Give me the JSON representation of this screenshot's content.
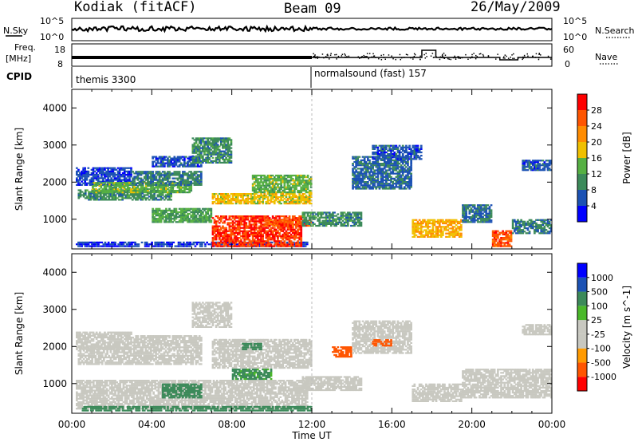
{
  "header": {
    "title": "Kodiak (fitACF)",
    "beam": "Beam 09",
    "date": "26/May/2009"
  },
  "strips": {
    "nsky_label": "N.Sky",
    "nsearch_label": "N.Search",
    "noise_tick_high": "10^5",
    "noise_tick_low": "10^0",
    "freq_label": "Freq.",
    "freq_unit": "[MHz]",
    "freq_tick_high": "18",
    "freq_tick_low": "8",
    "nave_label": "Nave",
    "nave_tick_high": "60",
    "nave_tick_low": "0",
    "cpid_label": "CPID",
    "cpid_1": "themis 3300",
    "cpid_2": "normalsound (fast) 157"
  },
  "colors": {
    "power_scale": [
      "#0000ff",
      "#1c52b4",
      "#3c8a5a",
      "#56b043",
      "#f0c000",
      "#ff8c00",
      "#ff5500",
      "#ff0000"
    ],
    "velocity_scale": [
      "#ff0000",
      "#ff5500",
      "#ff9a00",
      "#c8c8c0",
      "#c8c8c0",
      "#4ab82a",
      "#3c8a5a",
      "#1c52b4",
      "#0000ff"
    ],
    "grey_trace": "#c8c8c0"
  },
  "chart_data": [
    {
      "type": "heatmap",
      "name": "power",
      "xlabel": "",
      "ylabel": "Slant Range [km]",
      "x_ticks": [
        "00:00",
        "04:00",
        "08:00",
        "12:00",
        "16:00",
        "20:00",
        "00:00"
      ],
      "x_range_hours": [
        0,
        24
      ],
      "y_ticks": [
        "1000",
        "2000",
        "3000",
        "4000"
      ],
      "y_range_km": [
        200,
        4500
      ],
      "colorbar_label": "Power [dB]",
      "colorbar_ticks": [
        "4",
        "8",
        "12",
        "16",
        "20",
        "24",
        "28"
      ],
      "colorbar_range": [
        0,
        32
      ],
      "regions": [
        {
          "t0": 0.2,
          "t1": 11.8,
          "r0": 250,
          "r1": 400,
          "v": 4
        },
        {
          "t0": 0.2,
          "t1": 3.0,
          "r0": 1900,
          "r1": 2400,
          "v": 5
        },
        {
          "t0": 0.3,
          "t1": 5.0,
          "r0": 1500,
          "r1": 1800,
          "v": 10
        },
        {
          "t0": 1.0,
          "t1": 6.0,
          "r0": 1700,
          "r1": 2000,
          "v": 14
        },
        {
          "t0": 3.0,
          "t1": 6.5,
          "r0": 1900,
          "r1": 2300,
          "v": 9
        },
        {
          "t0": 4.0,
          "t1": 6.5,
          "r0": 2400,
          "r1": 2700,
          "v": 6
        },
        {
          "t0": 4.0,
          "t1": 7.0,
          "r0": 900,
          "r1": 1300,
          "v": 12
        },
        {
          "t0": 6.0,
          "t1": 8.0,
          "r0": 2500,
          "r1": 3200,
          "v": 10
        },
        {
          "t0": 7.0,
          "t1": 12.0,
          "r0": 1400,
          "r1": 1700,
          "v": 18
        },
        {
          "t0": 9.0,
          "t1": 12.0,
          "r0": 1700,
          "r1": 2200,
          "v": 14
        },
        {
          "t0": 7.0,
          "t1": 11.5,
          "r0": 250,
          "r1": 1100,
          "v": 28
        },
        {
          "t0": 9.5,
          "t1": 12.0,
          "r0": 800,
          "r1": 1000,
          "v": 26
        },
        {
          "t0": 11.5,
          "t1": 14.5,
          "r0": 800,
          "r1": 1200,
          "v": 10
        },
        {
          "t0": 14.0,
          "t1": 17.0,
          "r0": 1800,
          "r1": 2700,
          "v": 7
        },
        {
          "t0": 15.0,
          "t1": 17.5,
          "r0": 2600,
          "r1": 3000,
          "v": 6
        },
        {
          "t0": 17.0,
          "t1": 19.5,
          "r0": 500,
          "r1": 1000,
          "v": 20
        },
        {
          "t0": 19.5,
          "t1": 21.0,
          "r0": 900,
          "r1": 1400,
          "v": 8
        },
        {
          "t0": 21.0,
          "t1": 22.0,
          "r0": 250,
          "r1": 700,
          "v": 26
        },
        {
          "t0": 22.0,
          "t1": 24.0,
          "r0": 600,
          "r1": 1000,
          "v": 9
        },
        {
          "t0": 22.5,
          "t1": 24.0,
          "r0": 2300,
          "r1": 2600,
          "v": 6
        }
      ]
    },
    {
      "type": "heatmap",
      "name": "velocity",
      "xlabel": "Time UT",
      "ylabel": "Slant Range [km]",
      "x_ticks": [
        "00:00",
        "04:00",
        "08:00",
        "12:00",
        "16:00",
        "20:00",
        "00:00"
      ],
      "x_range_hours": [
        0,
        24
      ],
      "y_ticks": [
        "1000",
        "2000",
        "3000",
        "4000"
      ],
      "y_range_km": [
        200,
        4500
      ],
      "colorbar_label": "Velocity [m s^-1]",
      "colorbar_ticks": [
        "1000",
        "500",
        "100",
        "25",
        "-25",
        "-100",
        "-500",
        "-1000"
      ],
      "regions": [
        {
          "t0": 0.2,
          "t1": 11.8,
          "r0": 300,
          "r1": 1100,
          "v": 0
        },
        {
          "t0": 0.2,
          "t1": 3.0,
          "r0": 1900,
          "r1": 2400,
          "v": 0
        },
        {
          "t0": 0.3,
          "t1": 6.5,
          "r0": 1500,
          "r1": 2000,
          "v": 0
        },
        {
          "t0": 3.0,
          "t1": 6.5,
          "r0": 2000,
          "r1": 2300,
          "v": 0
        },
        {
          "t0": 6.0,
          "t1": 8.0,
          "r0": 2500,
          "r1": 3200,
          "v": 0
        },
        {
          "t0": 7.0,
          "t1": 12.0,
          "r0": 1400,
          "r1": 2200,
          "v": 0
        },
        {
          "t0": 4.5,
          "t1": 6.5,
          "r0": 600,
          "r1": 1000,
          "v": 120
        },
        {
          "t0": 8.0,
          "t1": 10.0,
          "r0": 1100,
          "r1": 1400,
          "v": 110
        },
        {
          "t0": 8.5,
          "t1": 9.5,
          "r0": 1900,
          "r1": 2100,
          "v": 200
        },
        {
          "t0": 11.5,
          "t1": 14.5,
          "r0": 800,
          "r1": 1200,
          "v": 0
        },
        {
          "t0": 13.0,
          "t1": 14.0,
          "r0": 1700,
          "r1": 2000,
          "v": -120
        },
        {
          "t0": 14.0,
          "t1": 17.0,
          "r0": 1800,
          "r1": 2700,
          "v": 0
        },
        {
          "t0": 15.0,
          "t1": 16.0,
          "r0": 2000,
          "r1": 2200,
          "v": -150
        },
        {
          "t0": 17.0,
          "t1": 19.5,
          "r0": 500,
          "r1": 1000,
          "v": 0
        },
        {
          "t0": 19.5,
          "t1": 24.0,
          "r0": 600,
          "r1": 1400,
          "v": 0
        },
        {
          "t0": 22.5,
          "t1": 24.0,
          "r0": 2300,
          "r1": 2600,
          "v": 0
        },
        {
          "t0": 0.5,
          "t1": 12.0,
          "r0": 250,
          "r1": 400,
          "v": 150
        }
      ]
    }
  ]
}
